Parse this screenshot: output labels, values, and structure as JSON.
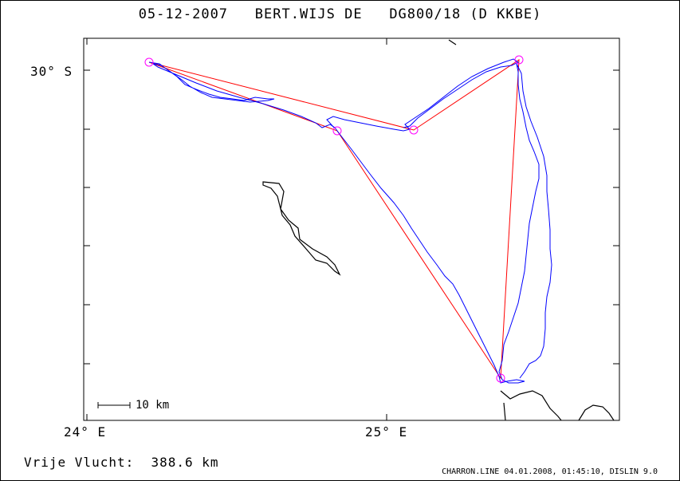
{
  "header": {
    "date": "05-12-2007",
    "pilot": "BERT.WIJS DE",
    "glider": "DG800/18 (D KKBE)"
  },
  "axes": {
    "lat_label": "30° S",
    "lon_labels": [
      "24° E",
      "25° E"
    ]
  },
  "scale_bar": {
    "label": "10 km"
  },
  "summary": {
    "distance_label": "Vrije Vlucht:",
    "distance_value": "388.6 km"
  },
  "footer": {
    "text": "CHARRON.LINE 04.01.2008, 01:45:10, DISLIN 9.0"
  },
  "colors": {
    "track": "#0000ff",
    "task": "#ff0000",
    "turnpoint": "#ff00ff",
    "border": "#000000"
  }
}
